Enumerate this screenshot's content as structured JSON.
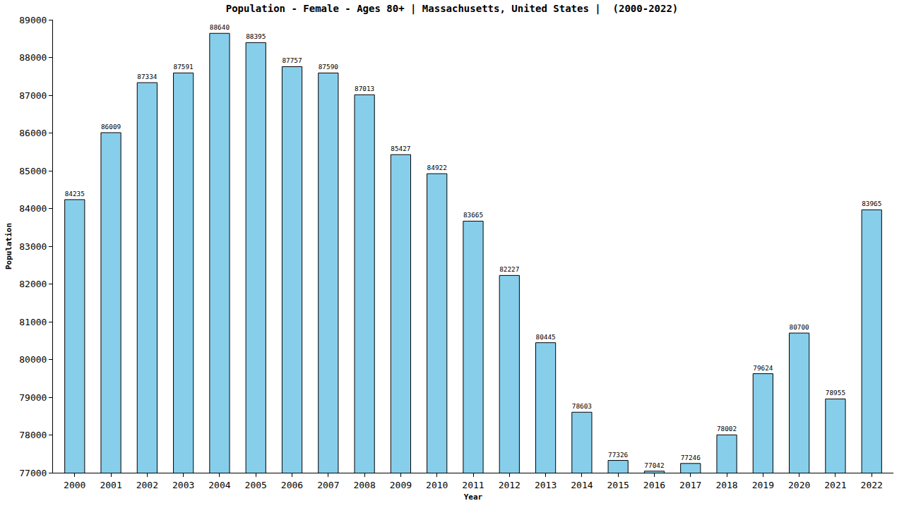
{
  "chart_data": {
    "type": "bar",
    "title": "Population - Female - Ages 80+ | Massachusetts, United States |  (2000-2022)",
    "x_label": "Year",
    "y_label": "Population",
    "categories": [
      "2000",
      "2001",
      "2002",
      "2003",
      "2004",
      "2005",
      "2006",
      "2007",
      "2008",
      "2009",
      "2010",
      "2011",
      "2012",
      "2013",
      "2014",
      "2015",
      "2016",
      "2017",
      "2018",
      "2019",
      "2020",
      "2021",
      "2022"
    ],
    "values": [
      84235,
      86009,
      87334,
      87591,
      88640,
      88395,
      87757,
      87590,
      87013,
      85427,
      84922,
      83665,
      82227,
      80445,
      78603,
      77326,
      77042,
      77246,
      78002,
      79624,
      80700,
      78955,
      83965
    ],
    "color": "#87ceeb",
    "ylim": [
      77000,
      89000
    ],
    "yticks": [
      77000,
      78000,
      79000,
      80000,
      81000,
      82000,
      83000,
      84000,
      85000,
      86000,
      87000,
      88000,
      89000
    ],
    "grid": false,
    "data_labels": true
  }
}
